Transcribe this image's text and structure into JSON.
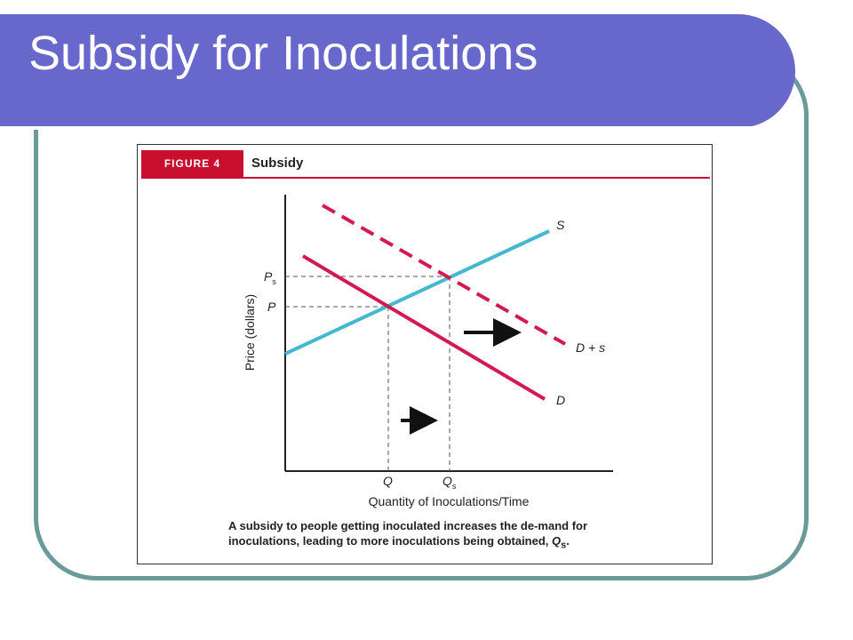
{
  "slide": {
    "title": "Subsidy for Inoculations"
  },
  "figure": {
    "tag": "FIGURE 4",
    "name": "Subsidy",
    "caption_main": "A subsidy to people getting inoculated increases the de-mand for inoculations, leading to more inoculations being obtained, ",
    "caption_symbol": "Q",
    "caption_subscript": "s",
    "caption_end": "."
  },
  "colors": {
    "title_bar": "#6767cc",
    "frame_border": "#6b9a9a",
    "demand_red": "#d11a4f",
    "supply_blue": "#45b7cf",
    "fig_red": "#c8102e"
  },
  "chart_data": {
    "type": "line",
    "xlabel": "Quantity of Inoculations/Time",
    "ylabel": "Price (dollars)",
    "x_ticks": [
      {
        "main": "Q",
        "sub": ""
      },
      {
        "main": "Q",
        "sub": "s"
      }
    ],
    "y_ticks": [
      {
        "main": "P",
        "sub": "s"
      },
      {
        "main": "P",
        "sub": ""
      }
    ],
    "series": [
      {
        "name": "S",
        "style": "solid",
        "color": "#45b7cf"
      },
      {
        "name": "D",
        "style": "solid",
        "color": "#d11a4f"
      },
      {
        "name": "D + s",
        "style": "dashed",
        "color": "#d11a4f"
      }
    ],
    "annotations": [
      "shift-right arrow (demand)",
      "shift-right arrow (quantity)"
    ]
  }
}
